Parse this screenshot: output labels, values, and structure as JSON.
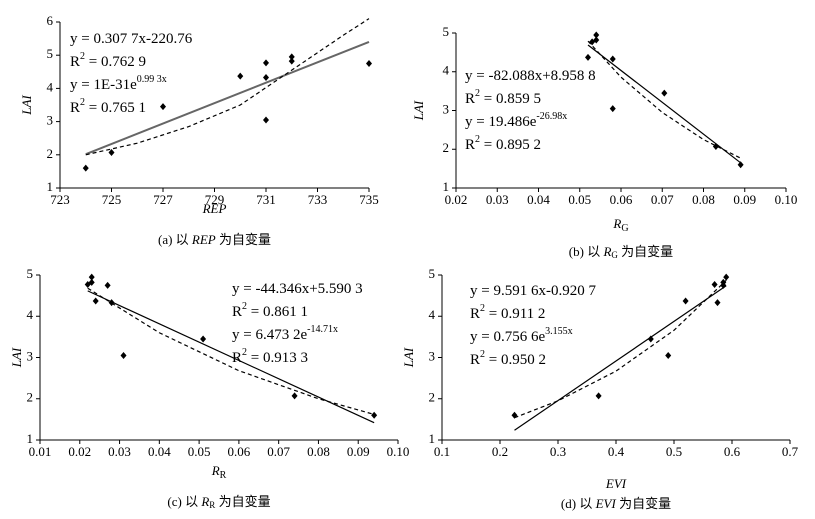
{
  "chart_data": [
    {
      "type": "scatter",
      "xlabel": {
        "text": "REP"
      },
      "ylabel": "LAI",
      "caption": {
        "prefix": "(a) 以 ",
        "var": "REP",
        "suffix": " 为自变量"
      },
      "x": [
        724,
        725,
        727,
        730,
        731,
        731,
        731,
        732,
        732,
        735
      ],
      "values": [
        1.6,
        2.07,
        3.45,
        4.37,
        4.33,
        4.77,
        3.05,
        4.95,
        4.82,
        4.75
      ],
      "xlim": [
        723,
        735
      ],
      "xticks": [
        723,
        725,
        727,
        729,
        731,
        733,
        735
      ],
      "ylim": [
        1,
        6
      ],
      "yticks": [
        1,
        2,
        3,
        4,
        5,
        6
      ],
      "color": "#000000",
      "fit_lines": [
        {
          "style": "solid",
          "color": "#666666",
          "x": [
            724,
            735
          ],
          "values": [
            2.02,
            5.4
          ]
        },
        {
          "style": "dashed",
          "color": "#000000",
          "x": [
            724,
            726,
            728,
            730,
            732,
            734,
            735
          ],
          "values": [
            2.0,
            2.35,
            2.85,
            3.5,
            4.55,
            5.6,
            6.1
          ]
        }
      ],
      "annotations": [
        [
          {
            "text": "y = 0.307 7x-220.76"
          }
        ],
        [
          {
            "text": "R"
          },
          {
            "sup": "2"
          },
          {
            "text": " = 0.762 9"
          }
        ],
        [
          {
            "text": "y = 1E-31e"
          },
          {
            "sup": "0.99 3x"
          }
        ],
        [
          {
            "text": "R"
          },
          {
            "sup": "2"
          },
          {
            "text": " = 0.765 1"
          }
        ]
      ]
    },
    {
      "type": "scatter",
      "xlabel": {
        "text": "R",
        "sub": "G"
      },
      "ylabel": "LAI",
      "caption": {
        "prefix": "(b) 以 ",
        "var": "R",
        "sub": "G",
        "suffix": " 为自变量"
      },
      "x": [
        0.052,
        0.053,
        0.054,
        0.054,
        0.058,
        0.058,
        0.0705,
        0.083,
        0.089
      ],
      "values": [
        4.37,
        4.77,
        4.95,
        4.82,
        3.05,
        4.33,
        3.45,
        2.07,
        1.6
      ],
      "xlim": [
        0.02,
        0.1
      ],
      "xticks": [
        0.02,
        0.03,
        0.04,
        0.05,
        0.06,
        0.07,
        0.08,
        0.09,
        {
          "value": 0.1,
          "label": "0.10"
        }
      ],
      "ylim": [
        1,
        5
      ],
      "yticks": [
        1,
        2,
        3,
        4,
        5
      ],
      "color": "#000000",
      "fit_lines": [
        {
          "style": "solid",
          "color": "#000000",
          "x": [
            0.052,
            0.089
          ],
          "values": [
            4.69,
            1.65
          ]
        },
        {
          "style": "dashed",
          "color": "#000000",
          "x": [
            0.052,
            0.06,
            0.07,
            0.08,
            0.089
          ],
          "values": [
            4.79,
            3.86,
            2.95,
            2.25,
            1.77
          ]
        }
      ],
      "annotations": [
        [
          {
            "text": "y = -82.088x+8.958 8"
          }
        ],
        [
          {
            "text": "R"
          },
          {
            "sup": "2"
          },
          {
            "text": " = 0.859 5"
          }
        ],
        [
          {
            "text": "y = 19.486e"
          },
          {
            "sup": "-26.98x"
          }
        ],
        [
          {
            "text": "R"
          },
          {
            "sup": "2"
          },
          {
            "text": " = 0.895 2"
          }
        ]
      ]
    },
    {
      "type": "scatter",
      "xlabel": {
        "text": "R",
        "sub": "R"
      },
      "ylabel": "LAI",
      "caption": {
        "prefix": "(c) 以 ",
        "var": "R",
        "sub": "R",
        "suffix": " 为自变量"
      },
      "x": [
        0.022,
        0.023,
        0.023,
        0.024,
        0.027,
        0.028,
        0.031,
        0.051,
        0.074,
        0.094
      ],
      "values": [
        4.77,
        4.82,
        4.95,
        4.37,
        4.75,
        4.33,
        3.05,
        3.45,
        2.07,
        1.6
      ],
      "xlim": [
        0.01,
        0.1
      ],
      "xticks": [
        0.01,
        0.02,
        0.03,
        0.04,
        0.05,
        0.06,
        0.07,
        0.08,
        0.09,
        {
          "value": 0.1,
          "label": "0.10"
        }
      ],
      "ylim": [
        1,
        5
      ],
      "yticks": [
        1,
        2,
        3,
        4,
        5
      ],
      "color": "#000000",
      "fit_lines": [
        {
          "style": "solid",
          "color": "#000000",
          "x": [
            0.022,
            0.094
          ],
          "values": [
            4.615,
            1.42
          ]
        },
        {
          "style": "dashed",
          "color": "#000000",
          "x": [
            0.022,
            0.04,
            0.06,
            0.08,
            0.094
          ],
          "values": [
            4.68,
            3.6,
            2.68,
            2.0,
            1.62
          ]
        }
      ],
      "annotations": [
        [
          {
            "text": "y = -44.346x+5.590 3"
          }
        ],
        [
          {
            "text": "R"
          },
          {
            "sup": "2"
          },
          {
            "text": " = 0.861 1"
          }
        ],
        [
          {
            "text": "y = 6.473 2e"
          },
          {
            "sup": "-14.71x"
          }
        ],
        [
          {
            "text": "R"
          },
          {
            "sup": "2"
          },
          {
            "text": " = 0.913 3"
          }
        ]
      ]
    },
    {
      "type": "scatter",
      "xlabel": {
        "text": "EVI"
      },
      "ylabel": "LAI",
      "caption": {
        "prefix": "(d) 以 ",
        "var": "EVI",
        "suffix": " 为自变量"
      },
      "x": [
        0.225,
        0.37,
        0.46,
        0.49,
        0.52,
        0.57,
        0.575,
        0.585,
        0.585,
        0.59
      ],
      "values": [
        1.6,
        2.07,
        3.45,
        3.05,
        4.37,
        4.77,
        4.33,
        4.82,
        4.75,
        4.95
      ],
      "xlim": [
        0.1,
        0.7
      ],
      "xticks": [
        0.1,
        0.2,
        0.3,
        0.4,
        0.5,
        0.6,
        0.7
      ],
      "ylim": [
        1,
        5
      ],
      "yticks": [
        1,
        2,
        3,
        4,
        5
      ],
      "color": "#000000",
      "fit_lines": [
        {
          "style": "solid",
          "color": "#000000",
          "x": [
            0.225,
            0.59
          ],
          "values": [
            1.237,
            4.738
          ]
        },
        {
          "style": "dashed",
          "color": "#000000",
          "x": [
            0.225,
            0.3,
            0.4,
            0.5,
            0.59
          ],
          "values": [
            1.54,
            1.95,
            2.67,
            3.66,
            4.87
          ]
        }
      ],
      "annotations": [
        [
          {
            "text": "y = 9.591 6x-0.920 7"
          }
        ],
        [
          {
            "text": "R"
          },
          {
            "sup": "2"
          },
          {
            "text": " = 0.911 2"
          }
        ],
        [
          {
            "text": "y = 0.756 6e"
          },
          {
            "sup": "3.155x"
          }
        ],
        [
          {
            "text": "R"
          },
          {
            "sup": "2"
          },
          {
            "text": " = 0.950 2"
          }
        ]
      ]
    }
  ]
}
